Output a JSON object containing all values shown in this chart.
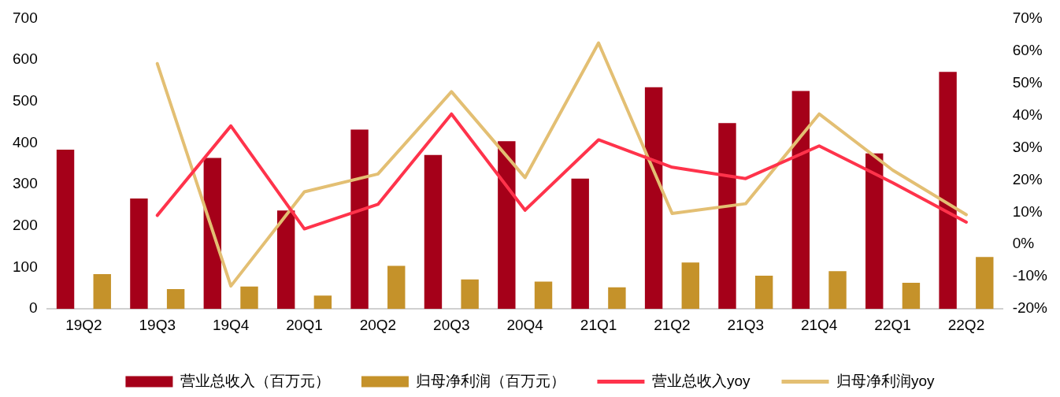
{
  "chart_data": {
    "type": "bar",
    "categories": [
      "19Q2",
      "19Q3",
      "19Q4",
      "20Q1",
      "20Q2",
      "20Q3",
      "20Q4",
      "21Q1",
      "21Q2",
      "21Q3",
      "21Q4",
      "22Q1",
      "22Q2"
    ],
    "series": [
      {
        "name": "营业总收入（百万元）",
        "color": "#a50019",
        "values": [
          384,
          266,
          364,
          237,
          432,
          371,
          404,
          314,
          534,
          448,
          525,
          375,
          571
        ]
      },
      {
        "name": "归母净利润（百万元）",
        "color": "#c5922a",
        "values": [
          84,
          48,
          54,
          32,
          104,
          71,
          66,
          52,
          112,
          80,
          91,
          63,
          125
        ]
      },
      {
        "name": "营业总收入yoy",
        "type": "line",
        "axis": "y2",
        "color": "#ff334b",
        "values": [
          null,
          9.0,
          36.7,
          4.8,
          12.4,
          40.4,
          10.6,
          32.4,
          23.9,
          20.4,
          30.5,
          19.1,
          6.9
        ]
      },
      {
        "name": "归母净利润yoy",
        "type": "line",
        "axis": "y2",
        "color": "#e3bf73",
        "values": [
          null,
          56.0,
          -12.9,
          16.3,
          21.8,
          47.3,
          20.7,
          62.4,
          9.6,
          12.6,
          40.4,
          23.0,
          9.2
        ]
      }
    ],
    "ylim": [
      0,
      700
    ],
    "yticks": [
      0,
      100,
      200,
      300,
      400,
      500,
      600,
      700
    ],
    "y2lim": [
      -20,
      70
    ],
    "y2ticks": [
      {
        "value": -20,
        "label": "-20%"
      },
      {
        "value": -10,
        "label": "-10%"
      },
      {
        "value": 0,
        "label": "0%"
      },
      {
        "value": 10,
        "label": "10%"
      },
      {
        "value": 20,
        "label": "20%"
      },
      {
        "value": 30,
        "label": "30%"
      },
      {
        "value": 40,
        "label": "40%"
      },
      {
        "value": 50,
        "label": "50%"
      },
      {
        "value": 60,
        "label": "60%"
      },
      {
        "value": 70,
        "label": "70%"
      }
    ],
    "grid": false,
    "legend": "bottom",
    "marker": "none",
    "line_style": "solid"
  }
}
